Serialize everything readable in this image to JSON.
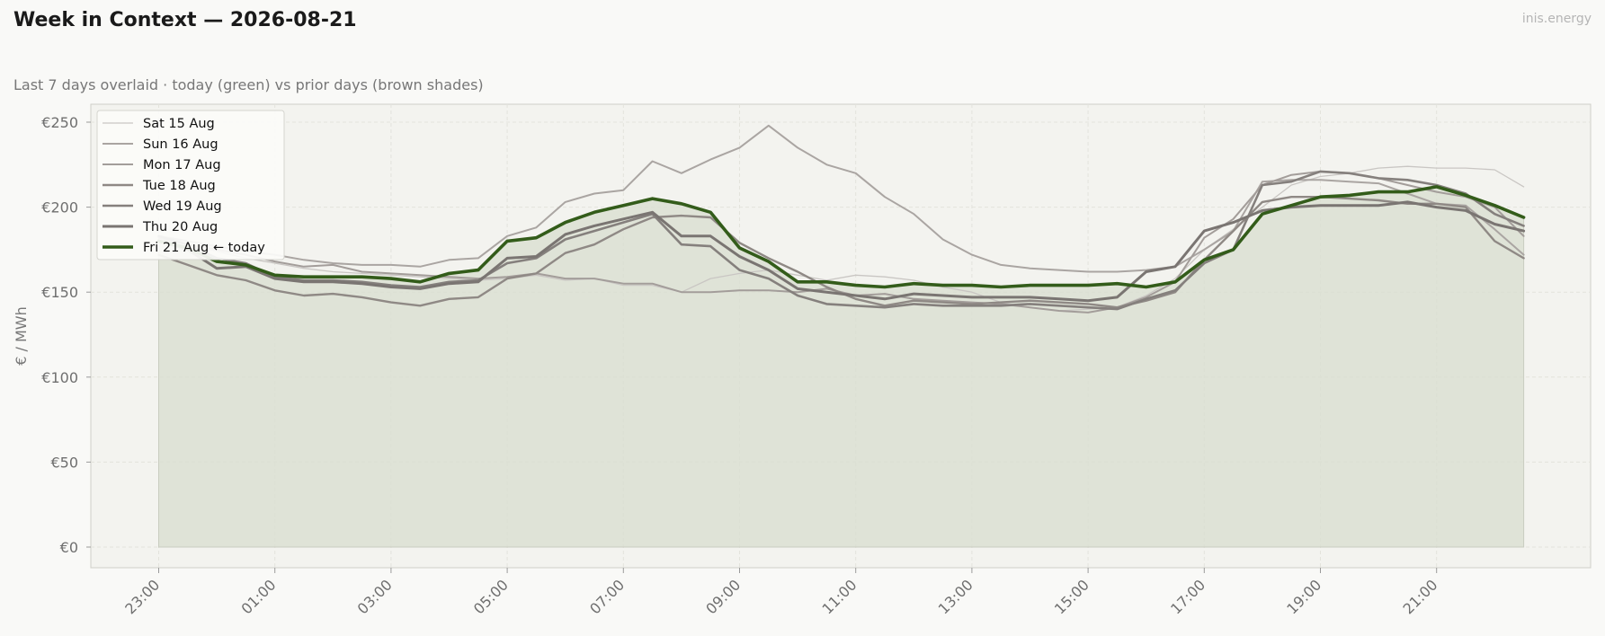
{
  "header": {
    "title": "Week in Context — 2026-08-21",
    "subtitle": "Last 7 days overlaid  ·  today (green) vs prior days (brown shades)",
    "brand": "inis.energy"
  },
  "colors": {
    "today": "#335c1a",
    "today_fill": "#dbdfd2",
    "plot_bg": "#f3f3ef",
    "grid": "#e3e3dc"
  },
  "chart_data": {
    "type": "line",
    "title": "Week in Context — 2026-08-21",
    "xlabel": "",
    "ylabel": "€ / MWh",
    "ylim": [
      -12,
      260
    ],
    "yticks": [
      0,
      50,
      100,
      150,
      200,
      250
    ],
    "ytick_labels": [
      "€0",
      "€50",
      "€100",
      "€150",
      "€200",
      "€250"
    ],
    "xtick_labels": [
      "23:00",
      "01:00",
      "03:00",
      "05:00",
      "07:00",
      "09:00",
      "11:00",
      "13:00",
      "15:00",
      "17:00",
      "19:00",
      "21:00"
    ],
    "x": [
      "23:00",
      "23:30",
      "00:00",
      "00:30",
      "01:00",
      "01:30",
      "02:00",
      "02:30",
      "03:00",
      "03:30",
      "04:00",
      "04:30",
      "05:00",
      "05:30",
      "06:00",
      "06:30",
      "07:00",
      "07:30",
      "08:00",
      "08:30",
      "09:00",
      "09:30",
      "10:00",
      "10:30",
      "11:00",
      "11:30",
      "12:00",
      "12:30",
      "13:00",
      "13:30",
      "14:00",
      "14:30",
      "15:00",
      "15:30",
      "16:00",
      "16:30",
      "17:00",
      "17:30",
      "18:00",
      "18:30",
      "19:00",
      "19:30",
      "20:00",
      "20:30",
      "21:00",
      "21:30",
      "22:00",
      "22:30"
    ],
    "grid": true,
    "legend_position": "top-left",
    "series": [
      {
        "name": "Sat 15 Aug",
        "color": "#c9c6c3",
        "width": 1.3,
        "values": [
          181,
          178,
          174,
          170,
          167,
          164,
          162,
          161,
          160,
          159,
          158,
          157,
          158,
          160,
          157,
          158,
          154,
          154,
          150,
          158,
          161,
          163,
          160,
          157,
          160,
          159,
          157,
          153,
          150,
          144,
          141,
          139,
          140,
          141,
          148,
          158,
          175,
          187,
          200,
          213,
          218,
          220,
          223,
          224,
          223,
          223,
          222,
          212
        ]
      },
      {
        "name": "Sun 16 Aug",
        "color": "#aaa5a2",
        "width": 2,
        "values": [
          183,
          180,
          177,
          174,
          172,
          169,
          167,
          166,
          166,
          165,
          169,
          170,
          183,
          188,
          203,
          208,
          210,
          227,
          220,
          228,
          235,
          248,
          235,
          225,
          220,
          206,
          196,
          181,
          172,
          166,
          164,
          163,
          162,
          162,
          163,
          165,
          175,
          186,
          215,
          216,
          216,
          215,
          214,
          208,
          202,
          201,
          187,
          172
        ]
      },
      {
        "name": "Mon 17 Aug",
        "color": "#a39d9a",
        "width": 2,
        "values": [
          182,
          178,
          175,
          172,
          168,
          165,
          166,
          162,
          161,
          160,
          159,
          158,
          159,
          161,
          158,
          158,
          155,
          155,
          150,
          150,
          151,
          151,
          150,
          152,
          148,
          149,
          146,
          145,
          144,
          143,
          141,
          139,
          138,
          141,
          147,
          156,
          182,
          193,
          213,
          219,
          221,
          220,
          217,
          213,
          209,
          206,
          200,
          183
        ]
      },
      {
        "name": "Tue 18 Aug",
        "color": "#8f8985",
        "width": 2.4,
        "values": [
          172,
          166,
          160,
          157,
          151,
          148,
          149,
          147,
          144,
          142,
          146,
          147,
          158,
          161,
          173,
          178,
          187,
          194,
          195,
          194,
          179,
          170,
          162,
          153,
          146,
          142,
          145,
          144,
          143,
          144,
          145,
          144,
          143,
          141,
          145,
          150,
          169,
          186,
          203,
          206,
          206,
          205,
          204,
          202,
          202,
          200,
          180,
          170
        ]
      },
      {
        "name": "Wed 19 Aug",
        "color": "#85807d",
        "width": 2.6,
        "values": [
          183,
          178,
          170,
          167,
          159,
          157,
          157,
          156,
          154,
          153,
          156,
          157,
          167,
          170,
          181,
          186,
          191,
          196,
          178,
          177,
          163,
          158,
          148,
          143,
          142,
          141,
          143,
          142,
          142,
          142,
          143,
          142,
          141,
          140,
          146,
          151,
          167,
          175,
          213,
          215,
          221,
          220,
          217,
          216,
          213,
          208,
          196,
          189
        ]
      },
      {
        "name": "Thu 20 Aug",
        "color": "#7a7572",
        "width": 3,
        "values": [
          180,
          175,
          164,
          165,
          158,
          156,
          156,
          155,
          153,
          152,
          155,
          156,
          170,
          171,
          184,
          189,
          193,
          197,
          183,
          183,
          171,
          163,
          152,
          150,
          148,
          146,
          149,
          148,
          147,
          147,
          147,
          146,
          145,
          147,
          162,
          165,
          186,
          191,
          198,
          200,
          201,
          201,
          201,
          203,
          200,
          198,
          190,
          186
        ]
      },
      {
        "name": "Fri 21 Aug  ← today",
        "color": "#335c1a",
        "width": 3.6,
        "today": true,
        "values": [
          180,
          176,
          168,
          166,
          160,
          159,
          159,
          159,
          158,
          156,
          161,
          163,
          180,
          182,
          191,
          197,
          201,
          205,
          202,
          197,
          176,
          168,
          156,
          156,
          154,
          153,
          155,
          154,
          154,
          153,
          154,
          154,
          154,
          155,
          153,
          156,
          169,
          175,
          196,
          201,
          206,
          207,
          209,
          209,
          212,
          207,
          201,
          194
        ]
      }
    ]
  }
}
